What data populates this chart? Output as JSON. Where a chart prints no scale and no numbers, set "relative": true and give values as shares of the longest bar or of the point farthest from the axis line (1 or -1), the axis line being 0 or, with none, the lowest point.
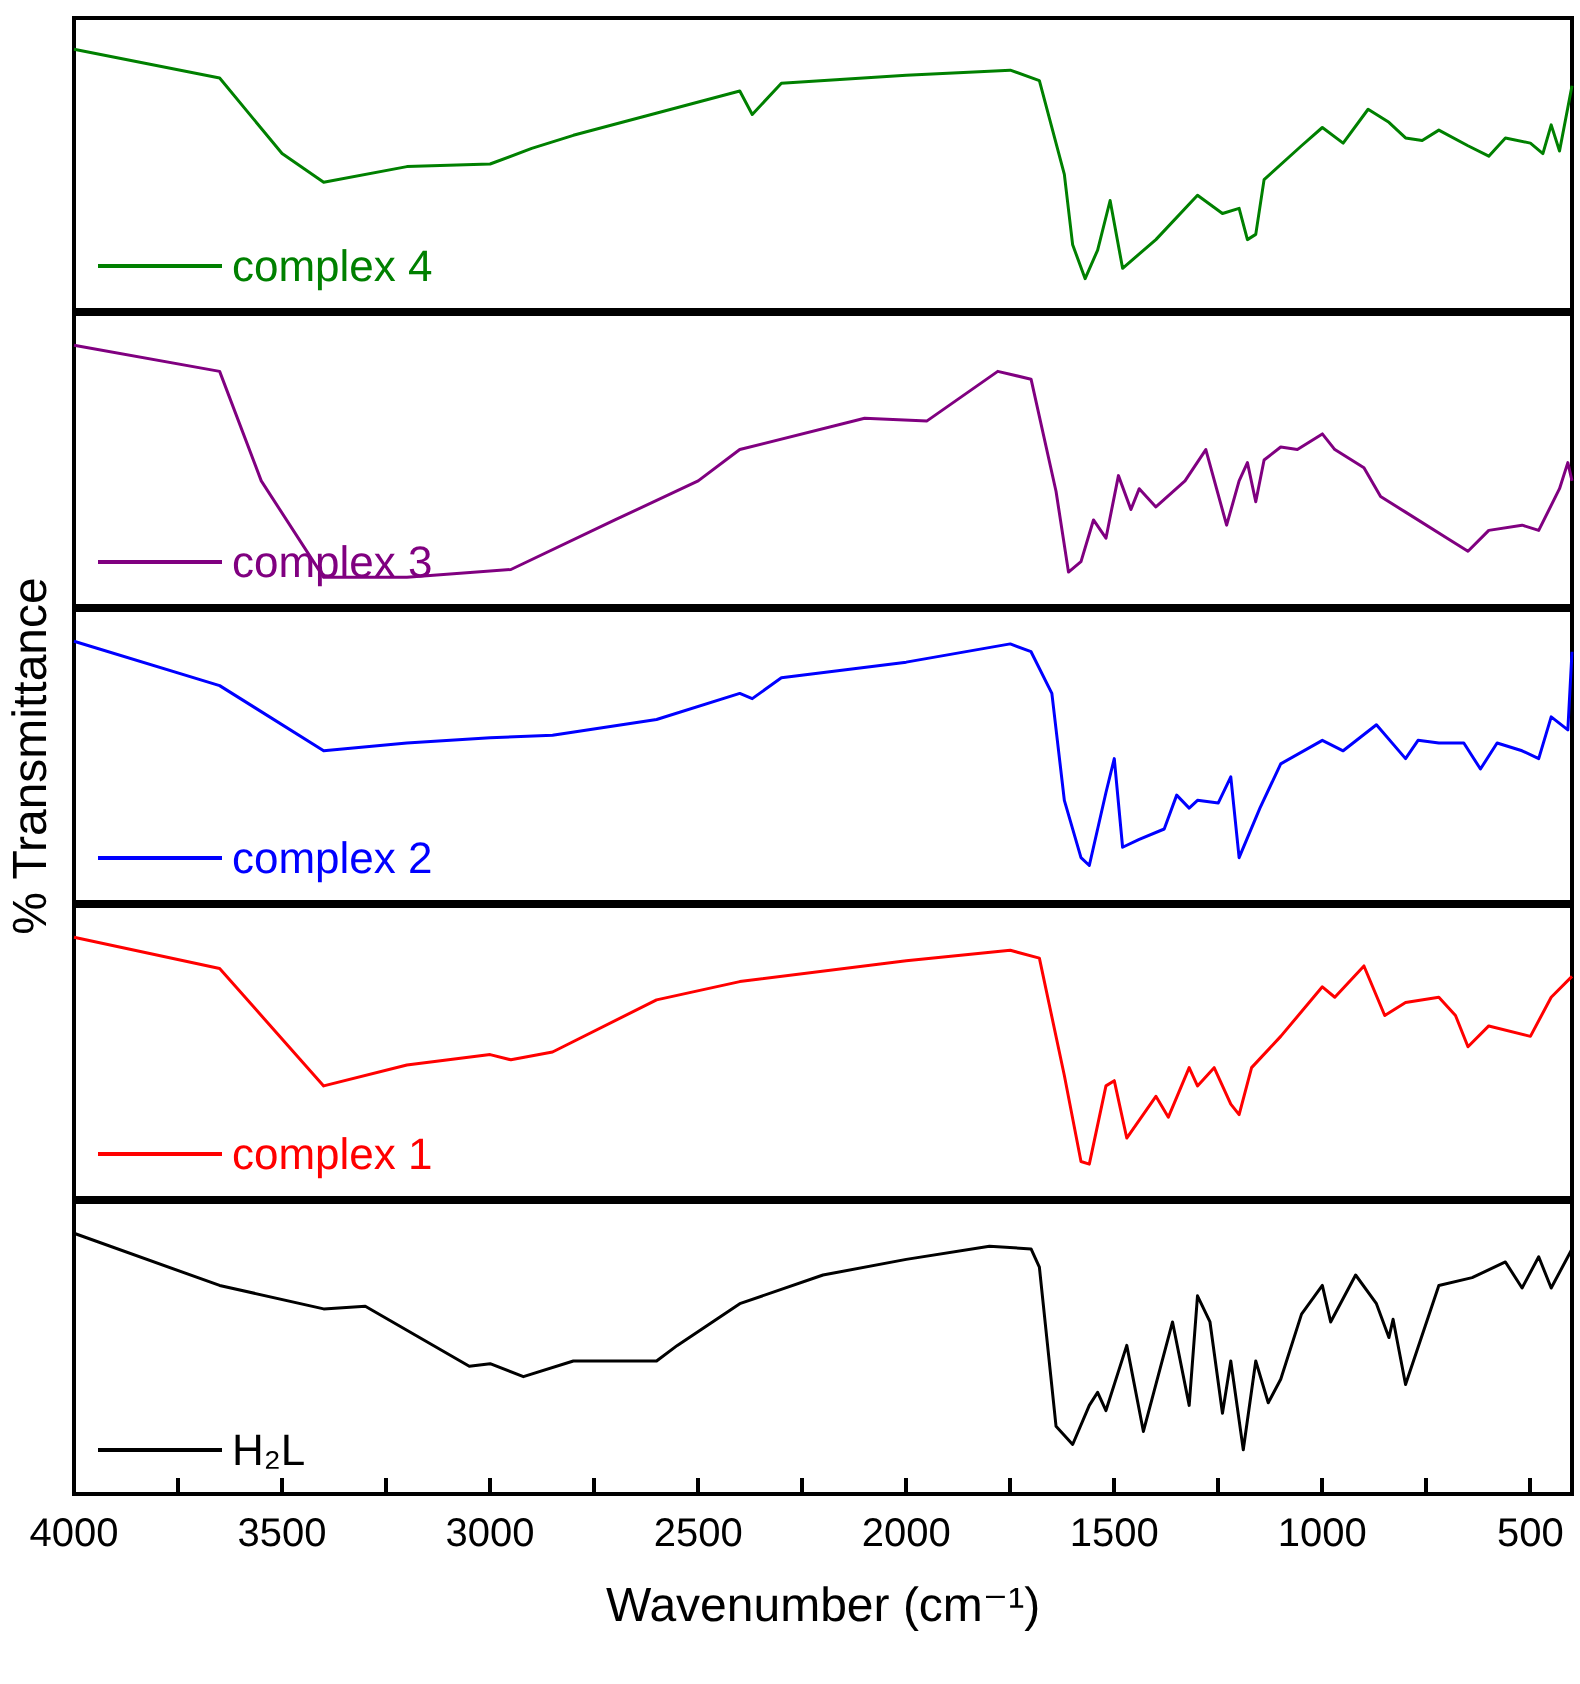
{
  "chart_data": [
    {
      "type": "line",
      "relative": true,
      "xlim": [
        4000,
        400
      ],
      "tick_labels": false,
      "legend": "bottom left",
      "marker": "none",
      "series": [
        {
          "name": "complex 4",
          "color": "#008000",
          "x": [
            4000,
            3650,
            3500,
            3400,
            3200,
            3000,
            2900,
            2800,
            2400,
            2370,
            2300,
            2000,
            1750,
            1680,
            1620,
            1600,
            1570,
            1540,
            1510,
            1480,
            1400,
            1300,
            1240,
            1200,
            1180,
            1160,
            1140,
            1050,
            1000,
            950,
            890,
            840,
            800,
            760,
            720,
            650,
            600,
            560,
            500,
            470,
            450,
            430,
            400
          ],
          "values": [
            1.0,
            0.89,
            0.6,
            0.49,
            0.55,
            0.56,
            0.62,
            0.67,
            0.84,
            0.75,
            0.87,
            0.9,
            0.92,
            0.88,
            0.52,
            0.25,
            0.12,
            0.23,
            0.42,
            0.16,
            0.27,
            0.44,
            0.37,
            0.39,
            0.27,
            0.29,
            0.5,
            0.63,
            0.7,
            0.64,
            0.77,
            0.72,
            0.66,
            0.65,
            0.69,
            0.63,
            0.59,
            0.66,
            0.64,
            0.6,
            0.71,
            0.61,
            0.86
          ]
        }
      ]
    },
    {
      "type": "line",
      "relative": true,
      "xlim": [
        4000,
        400
      ],
      "tick_labels": false,
      "legend": "bottom left",
      "marker": "none",
      "series": [
        {
          "name": "complex 3",
          "color": "#800080",
          "x": [
            4000,
            3650,
            3550,
            3400,
            3200,
            2950,
            2700,
            2500,
            2400,
            2100,
            1950,
            1780,
            1700,
            1640,
            1610,
            1580,
            1550,
            1520,
            1490,
            1460,
            1440,
            1400,
            1330,
            1280,
            1230,
            1200,
            1180,
            1160,
            1140,
            1100,
            1060,
            1000,
            970,
            900,
            860,
            800,
            700,
            650,
            600,
            520,
            480,
            430,
            410,
            400
          ],
          "values": [
            1.0,
            0.9,
            0.48,
            0.11,
            0.11,
            0.14,
            0.33,
            0.48,
            0.6,
            0.72,
            0.71,
            0.9,
            0.87,
            0.44,
            0.13,
            0.17,
            0.33,
            0.26,
            0.5,
            0.37,
            0.45,
            0.38,
            0.48,
            0.6,
            0.31,
            0.48,
            0.55,
            0.4,
            0.56,
            0.61,
            0.6,
            0.66,
            0.6,
            0.53,
            0.42,
            0.36,
            0.26,
            0.21,
            0.29,
            0.31,
            0.29,
            0.45,
            0.55,
            0.48
          ]
        }
      ]
    },
    {
      "type": "line",
      "relative": true,
      "xlim": [
        4000,
        400
      ],
      "tick_labels": false,
      "legend": "bottom left",
      "marker": "none",
      "ylabel": "% Transmittance",
      "series": [
        {
          "name": "complex 2",
          "color": "#0000ff",
          "x": [
            4000,
            3650,
            3400,
            3200,
            3000,
            2850,
            2600,
            2400,
            2370,
            2300,
            2000,
            1750,
            1700,
            1650,
            1620,
            1580,
            1560,
            1520,
            1500,
            1480,
            1440,
            1380,
            1350,
            1320,
            1300,
            1250,
            1220,
            1200,
            1150,
            1100,
            1000,
            950,
            870,
            800,
            770,
            720,
            660,
            620,
            580,
            520,
            480,
            450,
            410,
            400
          ],
          "values": [
            1.0,
            0.83,
            0.58,
            0.61,
            0.63,
            0.64,
            0.7,
            0.8,
            0.78,
            0.86,
            0.92,
            0.99,
            0.96,
            0.8,
            0.39,
            0.17,
            0.14,
            0.42,
            0.55,
            0.21,
            0.24,
            0.28,
            0.41,
            0.36,
            0.39,
            0.38,
            0.48,
            0.17,
            0.36,
            0.53,
            0.62,
            0.58,
            0.68,
            0.55,
            0.62,
            0.61,
            0.61,
            0.51,
            0.61,
            0.58,
            0.55,
            0.71,
            0.66,
            0.96
          ]
        }
      ]
    },
    {
      "type": "line",
      "relative": true,
      "xlim": [
        4000,
        400
      ],
      "tick_labels": false,
      "legend": "bottom left",
      "marker": "none",
      "series": [
        {
          "name": "complex 1",
          "color": "#ff0000",
          "x": [
            4000,
            3650,
            3400,
            3200,
            3000,
            2950,
            2850,
            2600,
            2400,
            2000,
            1750,
            1680,
            1620,
            1580,
            1560,
            1520,
            1500,
            1470,
            1400,
            1370,
            1320,
            1300,
            1260,
            1220,
            1200,
            1170,
            1100,
            1000,
            970,
            900,
            850,
            800,
            720,
            680,
            650,
            600,
            500,
            450,
            400
          ],
          "values": [
            1.0,
            0.88,
            0.43,
            0.51,
            0.55,
            0.53,
            0.56,
            0.76,
            0.83,
            0.91,
            0.95,
            0.92,
            0.47,
            0.14,
            0.13,
            0.43,
            0.45,
            0.23,
            0.39,
            0.31,
            0.5,
            0.43,
            0.5,
            0.36,
            0.32,
            0.5,
            0.62,
            0.81,
            0.77,
            0.89,
            0.7,
            0.75,
            0.77,
            0.7,
            0.58,
            0.66,
            0.62,
            0.77,
            0.85
          ]
        }
      ]
    },
    {
      "type": "line",
      "relative": true,
      "xlim": [
        4000,
        400
      ],
      "xticks": [
        4000,
        {
          "value": 3750,
          "label": null
        },
        3500,
        {
          "value": 3250,
          "label": null
        },
        3000,
        {
          "value": 2750,
          "label": null
        },
        2500,
        {
          "value": 2250,
          "label": null
        },
        2000,
        {
          "value": 1750,
          "label": null
        },
        1500,
        {
          "value": 1250,
          "label": null
        },
        1000,
        {
          "value": 750,
          "label": null
        },
        500
      ],
      "tick_labels": "x",
      "legend": "bottom left",
      "marker": "none",
      "xlabel": "Wavenumber (cm⁻¹)",
      "series": [
        {
          "name": "H₂L",
          "color": "#000000",
          "x": [
            4000,
            3650,
            3400,
            3300,
            3050,
            3000,
            2920,
            2800,
            2700,
            2600,
            2550,
            2400,
            2200,
            2000,
            1800,
            1700,
            1680,
            1640,
            1600,
            1560,
            1540,
            1520,
            1470,
            1430,
            1360,
            1320,
            1300,
            1270,
            1240,
            1220,
            1190,
            1160,
            1130,
            1100,
            1050,
            1000,
            980,
            920,
            870,
            840,
            830,
            800,
            720,
            640,
            560,
            520,
            480,
            450,
            400
          ],
          "values": [
            1.0,
            0.8,
            0.71,
            0.72,
            0.49,
            0.5,
            0.45,
            0.51,
            0.51,
            0.51,
            0.57,
            0.73,
            0.84,
            0.9,
            0.95,
            0.94,
            0.87,
            0.26,
            0.19,
            0.34,
            0.39,
            0.32,
            0.57,
            0.24,
            0.66,
            0.34,
            0.76,
            0.66,
            0.31,
            0.51,
            0.17,
            0.51,
            0.35,
            0.44,
            0.69,
            0.8,
            0.66,
            0.84,
            0.73,
            0.6,
            0.67,
            0.42,
            0.8,
            0.83,
            0.89,
            0.79,
            0.91,
            0.79,
            0.94
          ]
        }
      ]
    }
  ]
}
